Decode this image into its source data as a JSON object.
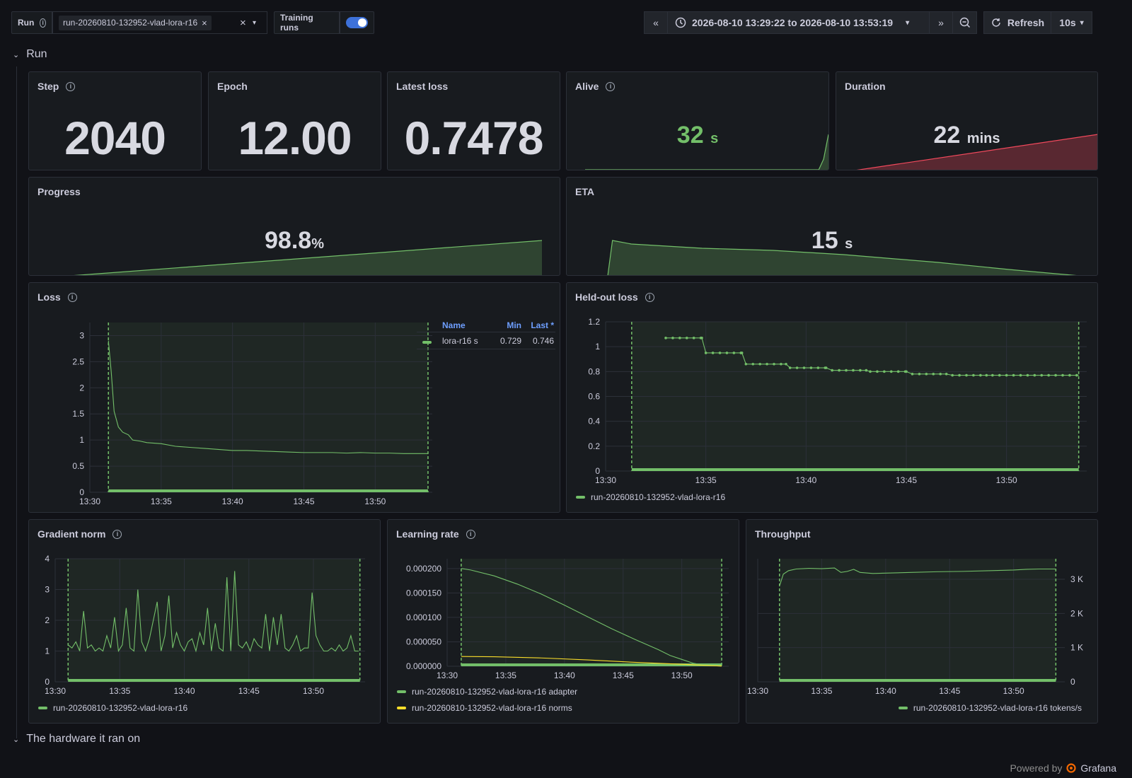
{
  "toolbar": {
    "run_label": "Run",
    "run_value": "run-20260810-132952-vlad-lora-r16",
    "training_runs_label": "Training runs",
    "time_range": "2026-08-10 13:29:22 to 2026-08-10 13:53:19",
    "refresh_label": "Refresh",
    "refresh_interval": "10s"
  },
  "sections": {
    "run": "Run",
    "hardware": "The hardware it ran on"
  },
  "stats": {
    "step": {
      "title": "Step",
      "value": "2040"
    },
    "epoch": {
      "title": "Epoch",
      "value": "12.00"
    },
    "latest_loss": {
      "title": "Latest loss",
      "value": "0.7478"
    },
    "alive": {
      "title": "Alive",
      "value": "32",
      "unit": "s",
      "color": "#73bf69"
    },
    "duration": {
      "title": "Duration",
      "value": "22",
      "unit": "mins",
      "color": "#f2495c"
    },
    "progress": {
      "title": "Progress",
      "value": "98.8",
      "unit": "%"
    },
    "eta": {
      "title": "ETA",
      "value": "15",
      "unit": "s"
    }
  },
  "colors": {
    "green": "#73bf69",
    "yellow": "#fade2a",
    "red": "#f2495c",
    "blue": "#6e9fff"
  },
  "chart_data": [
    {
      "id": "loss",
      "type": "line",
      "title": "Loss",
      "x_ticks": [
        "13:30",
        "13:35",
        "13:40",
        "13:45",
        "13:50"
      ],
      "y_ticks": [
        "0",
        "0.5",
        "1",
        "1.5",
        "2",
        "2.5",
        "3"
      ],
      "ylim": [
        0,
        3.25
      ],
      "xlim_min": [
        0,
        24
      ],
      "legend": {
        "headers": [
          "Name",
          "Min",
          "Last *"
        ],
        "rows": [
          [
            "lora-r16 s",
            "0.729",
            "0.746"
          ]
        ]
      },
      "series": [
        {
          "name": "lora-r16 s",
          "x": [
            1.3,
            1.5,
            1.7,
            2,
            2.3,
            2.7,
            3,
            3.5,
            4,
            5,
            6,
            7,
            8,
            9,
            10,
            11,
            12,
            13,
            14,
            15,
            16,
            17,
            18,
            19,
            20,
            21,
            22,
            23,
            23.7
          ],
          "y": [
            2.9,
            2.3,
            1.55,
            1.25,
            1.15,
            1.1,
            1.0,
            0.98,
            0.95,
            0.93,
            0.88,
            0.86,
            0.84,
            0.82,
            0.8,
            0.8,
            0.79,
            0.78,
            0.77,
            0.76,
            0.76,
            0.76,
            0.75,
            0.76,
            0.75,
            0.75,
            0.74,
            0.74,
            0.74
          ]
        }
      ]
    },
    {
      "id": "heldout",
      "type": "line",
      "title": "Held-out loss",
      "x_ticks": [
        "13:30",
        "13:35",
        "13:40",
        "13:45",
        "13:50"
      ],
      "y_ticks": [
        "0",
        "0.2",
        "0.4",
        "0.6",
        "0.8",
        "1",
        "1.2"
      ],
      "ylim": [
        0,
        1.2
      ],
      "series": [
        {
          "name": "run-20260810-132952-vlad-lora-r16",
          "x": [
            3,
            4.8,
            5,
            6.8,
            7,
            9,
            9.2,
            11,
            11.3,
            13,
            13.2,
            15,
            15.3,
            17,
            17.3,
            19,
            19.3,
            23.6
          ],
          "y": [
            1.07,
            1.07,
            0.95,
            0.95,
            0.86,
            0.86,
            0.83,
            0.83,
            0.81,
            0.81,
            0.8,
            0.8,
            0.78,
            0.78,
            0.77,
            0.77,
            0.77,
            0.77
          ]
        }
      ]
    },
    {
      "id": "gradnorm",
      "type": "line",
      "title": "Gradient norm",
      "x_ticks": [
        "13:30",
        "13:35",
        "13:40",
        "13:45",
        "13:50"
      ],
      "y_ticks": [
        "0",
        "1",
        "2",
        "3",
        "4"
      ],
      "ylim": [
        0,
        4
      ],
      "series": [
        {
          "name": "run-20260810-132952-vlad-lora-r16",
          "x": [
            1,
            1.3,
            1.6,
            1.9,
            2.2,
            2.5,
            2.8,
            3.1,
            3.4,
            3.7,
            4,
            4.3,
            4.6,
            4.9,
            5.2,
            5.5,
            5.8,
            6.1,
            6.4,
            6.7,
            7,
            7.3,
            7.6,
            7.9,
            8.2,
            8.5,
            8.8,
            9.1,
            9.4,
            9.7,
            10,
            10.3,
            10.6,
            10.9,
            11.2,
            11.5,
            11.8,
            12.1,
            12.4,
            12.7,
            13,
            13.3,
            13.6,
            13.9,
            14.2,
            14.5,
            14.8,
            15.1,
            15.4,
            15.7,
            16,
            16.3,
            16.6,
            16.9,
            17.2,
            17.5,
            17.8,
            18.1,
            18.4,
            18.7,
            19,
            19.3,
            19.6,
            19.9,
            20.2,
            20.5,
            20.8,
            21.1,
            21.4,
            21.7,
            22,
            22.3,
            22.6,
            22.9,
            23.2,
            23.5
          ],
          "y": [
            1.2,
            1.1,
            1.3,
            1.0,
            2.3,
            1.1,
            1.2,
            1.0,
            1.1,
            1.0,
            1.5,
            1.1,
            2.1,
            1.0,
            1.2,
            2.4,
            1.1,
            1.0,
            3.0,
            1.3,
            1.0,
            1.4,
            2.0,
            2.6,
            1.0,
            1.5,
            2.8,
            1.1,
            1.6,
            1.2,
            1.0,
            1.3,
            1.4,
            1.0,
            1.6,
            1.2,
            2.4,
            1.0,
            1.9,
            1.1,
            1.0,
            3.4,
            1.0,
            3.6,
            1.2,
            1.1,
            1.3,
            1.0,
            1.4,
            1.2,
            1.1,
            2.2,
            1.0,
            2.1,
            1.2,
            2.2,
            1.1,
            1.0,
            1.2,
            1.5,
            1.0,
            1.1,
            1.1,
            2.9,
            1.5,
            1.2,
            1.0,
            1.0,
            1.1,
            1.0,
            1.2,
            1.0,
            1.1,
            1.5,
            1.0,
            1.0
          ]
        }
      ]
    },
    {
      "id": "lr",
      "type": "line",
      "title": "Learning rate",
      "x_ticks": [
        "13:30",
        "13:35",
        "13:40",
        "13:45",
        "13:50"
      ],
      "y_ticks": [
        "0.000000",
        "0.000050",
        "0.000100",
        "0.000150",
        "0.000200"
      ],
      "ylim": [
        0,
        0.00022
      ],
      "series": [
        {
          "name": "run-20260810-132952-vlad-lora-r16 adapter",
          "color": "#73bf69",
          "x": [
            1.2,
            2,
            4,
            6,
            8,
            10,
            12,
            14,
            16,
            18,
            19,
            20,
            21,
            22,
            23.4
          ],
          "y": [
            0.0002,
            0.000197,
            0.000185,
            0.000168,
            0.000148,
            0.000125,
            0.000101,
            7.7e-05,
            5.5e-05,
            3.4e-05,
            2.2e-05,
            1.4e-05,
            6e-06,
            2e-06,
            2e-07
          ]
        },
        {
          "name": "run-20260810-132952-vlad-lora-r16 norms",
          "color": "#fade2a",
          "x": [
            1.2,
            4,
            8,
            12,
            16,
            20,
            23.4
          ],
          "y": [
            2e-05,
            1.95e-05,
            1.7e-05,
            1.3e-05,
            8e-06,
            4e-06,
            5e-07
          ]
        }
      ]
    },
    {
      "id": "throughput",
      "type": "line",
      "title": "Throughput",
      "x_ticks": [
        "13:30",
        "13:35",
        "13:40",
        "13:45",
        "13:50"
      ],
      "y_ticks": [
        "0",
        "1 K",
        "2 K",
        "3 K"
      ],
      "ylim": [
        0,
        3600
      ],
      "series": [
        {
          "name": "run-20260810-132952-vlad-lora-r16 tokens/s",
          "x": [
            1.7,
            2,
            2.4,
            3,
            4,
            5,
            6,
            6.5,
            7,
            7.5,
            8,
            9,
            10,
            12,
            14,
            16,
            18,
            20,
            21,
            22,
            23.3
          ],
          "y": [
            2800,
            3150,
            3250,
            3300,
            3320,
            3310,
            3330,
            3200,
            3230,
            3290,
            3200,
            3170,
            3180,
            3200,
            3220,
            3230,
            3250,
            3270,
            3290,
            3300,
            3300
          ]
        }
      ]
    }
  ],
  "sparks": {
    "alive": {
      "x": [
        0,
        0.93,
        0.96,
        0.98,
        1.0
      ],
      "y": [
        0.0,
        0.0,
        0.0,
        0.3,
        1.0
      ]
    },
    "duration": {
      "x": [
        0,
        1
      ],
      "y": [
        0,
        1
      ]
    },
    "progress": {
      "x": [
        0,
        1
      ],
      "y": [
        0,
        1
      ]
    },
    "eta": {
      "x": [
        0,
        0.01,
        0.05,
        0.2,
        0.25,
        0.35,
        0.5,
        0.7,
        0.85,
        1.0
      ],
      "y": [
        0,
        1.0,
        0.9,
        0.78,
        0.76,
        0.72,
        0.6,
        0.38,
        0.18,
        0.0
      ]
    }
  },
  "footer": {
    "powered_by": "Powered by",
    "brand": "Grafana"
  }
}
